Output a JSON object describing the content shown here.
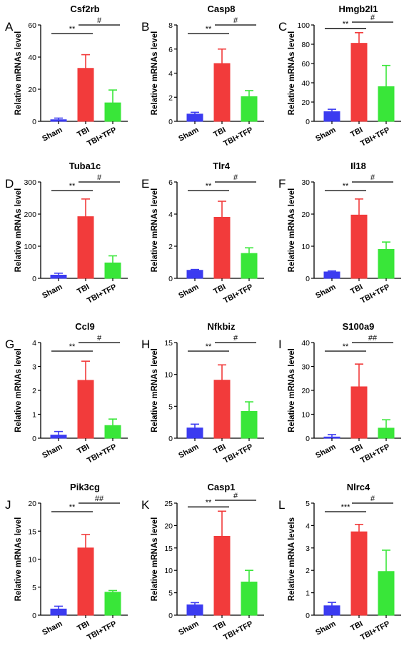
{
  "figure": {
    "colors": {
      "sham": "#3b3bf0",
      "tbi": "#f23b3b",
      "tfp": "#39e639",
      "axis": "#000000"
    },
    "categories": [
      "Sham",
      "TBI",
      "TBI+TFP"
    ]
  },
  "chart_data": [
    {
      "type": "bar",
      "letter": "A",
      "title": "Csf2rb",
      "ylabel": "Relative mRNAs level",
      "categories": [
        "Sham",
        "TBI",
        "TBI+TFP"
      ],
      "values": [
        1,
        33,
        11.5
      ],
      "errors": [
        1,
        8.5,
        8
      ],
      "ylim": [
        0,
        60
      ],
      "yticks": [
        "0",
        "20",
        "40",
        "60"
      ],
      "brackets": [
        {
          "from": 0,
          "to": 1,
          "label": "**"
        },
        {
          "from": 1,
          "to": 2,
          "label": "#"
        }
      ]
    },
    {
      "type": "bar",
      "letter": "B",
      "title": "Casp8",
      "ylabel": "Relative mRNAs level",
      "categories": [
        "Sham",
        "TBI",
        "TBI+TFP"
      ],
      "values": [
        0.6,
        4.8,
        2.05
      ],
      "errors": [
        0.15,
        1.2,
        0.5
      ],
      "ylim": [
        0,
        8
      ],
      "yticks": [
        "0",
        "2",
        "4",
        "6",
        "8"
      ],
      "brackets": [
        {
          "from": 0,
          "to": 1,
          "label": "**"
        },
        {
          "from": 1,
          "to": 2,
          "label": "#"
        }
      ]
    },
    {
      "type": "bar",
      "letter": "C",
      "title": "Hmgb2l1",
      "ylabel": "Relative mRNAs level",
      "categories": [
        "Sham",
        "TBI",
        "TBI+TFP"
      ],
      "values": [
        10,
        81,
        36
      ],
      "errors": [
        2.5,
        11,
        22
      ],
      "ylim": [
        0,
        100
      ],
      "yticks": [
        "0",
        "20",
        "40",
        "60",
        "80",
        "100"
      ],
      "brackets": [
        {
          "from": 0,
          "to": 1,
          "label": "**"
        },
        {
          "from": 1,
          "to": 2,
          "label": "#"
        }
      ]
    },
    {
      "type": "bar",
      "letter": "D",
      "title": "Tuba1c",
      "ylabel": "Relative mRNAs level",
      "categories": [
        "Sham",
        "TBI",
        "TBI+TFP"
      ],
      "values": [
        10,
        192,
        48
      ],
      "errors": [
        6,
        55,
        22
      ],
      "ylim": [
        0,
        300
      ],
      "yticks": [
        "0",
        "100",
        "200",
        "300"
      ],
      "brackets": [
        {
          "from": 0,
          "to": 1,
          "label": "**"
        },
        {
          "from": 1,
          "to": 2,
          "label": "#"
        }
      ]
    },
    {
      "type": "bar",
      "letter": "E",
      "title": "Tlr4",
      "ylabel": "Relative mRNAs level",
      "categories": [
        "Sham",
        "TBI",
        "TBI+TFP"
      ],
      "values": [
        0.5,
        3.8,
        1.55
      ],
      "errors": [
        0.05,
        1.0,
        0.35
      ],
      "ylim": [
        0,
        6
      ],
      "yticks": [
        "0",
        "2",
        "4",
        "6"
      ],
      "brackets": [
        {
          "from": 0,
          "to": 1,
          "label": "**"
        },
        {
          "from": 1,
          "to": 2,
          "label": "#"
        }
      ]
    },
    {
      "type": "bar",
      "letter": "F",
      "title": "Il18",
      "ylabel": "Relative mRNAs level",
      "categories": [
        "Sham",
        "TBI",
        "TBI+TFP"
      ],
      "values": [
        2,
        19.7,
        9
      ],
      "errors": [
        0.3,
        5,
        2.3
      ],
      "ylim": [
        0,
        30
      ],
      "yticks": [
        "0",
        "10",
        "20",
        "30"
      ],
      "brackets": [
        {
          "from": 0,
          "to": 1,
          "label": "**"
        },
        {
          "from": 1,
          "to": 2,
          "label": "#"
        }
      ]
    },
    {
      "type": "bar",
      "letter": "G",
      "title": "Ccl9",
      "ylabel": "Relative mRNAs level",
      "categories": [
        "Sham",
        "TBI",
        "TBI+TFP"
      ],
      "values": [
        0.13,
        2.42,
        0.53
      ],
      "errors": [
        0.15,
        0.8,
        0.27
      ],
      "ylim": [
        0,
        4
      ],
      "yticks": [
        "0",
        "1",
        "2",
        "3",
        "4"
      ],
      "brackets": [
        {
          "from": 0,
          "to": 1,
          "label": "**"
        },
        {
          "from": 1,
          "to": 2,
          "label": "#"
        }
      ]
    },
    {
      "type": "bar",
      "letter": "H",
      "title": "Nfkbiz",
      "ylabel": "Relative mRNAs level",
      "categories": [
        "Sham",
        "TBI",
        "TBI+TFP"
      ],
      "values": [
        1.6,
        9.1,
        4.2
      ],
      "errors": [
        0.6,
        2.4,
        1.5
      ],
      "ylim": [
        0,
        15
      ],
      "yticks": [
        "0",
        "5",
        "10",
        "15"
      ],
      "brackets": [
        {
          "from": 0,
          "to": 1,
          "label": "**"
        },
        {
          "from": 1,
          "to": 2,
          "label": "#"
        }
      ]
    },
    {
      "type": "bar",
      "letter": "I",
      "title": "S100a9",
      "ylabel": "Relative mRNAs level",
      "categories": [
        "Sham",
        "TBI",
        "TBI+TFP"
      ],
      "values": [
        0.5,
        21.5,
        4.2
      ],
      "errors": [
        1,
        9.5,
        3.5
      ],
      "ylim": [
        0,
        40
      ],
      "yticks": [
        "0",
        "10",
        "20",
        "30",
        "40"
      ],
      "brackets": [
        {
          "from": 0,
          "to": 1,
          "label": "**"
        },
        {
          "from": 1,
          "to": 2,
          "label": "##"
        }
      ]
    },
    {
      "type": "bar",
      "letter": "J",
      "title": "Pik3cg",
      "ylabel": "Relative mRNAs level",
      "categories": [
        "Sham",
        "TBI",
        "TBI+TFP"
      ],
      "values": [
        1.1,
        12,
        4.1
      ],
      "errors": [
        0.5,
        2.4,
        0.3
      ],
      "ylim": [
        0,
        20
      ],
      "yticks": [
        "0",
        "5",
        "10",
        "15",
        "20"
      ],
      "brackets": [
        {
          "from": 0,
          "to": 1,
          "label": "**"
        },
        {
          "from": 1,
          "to": 2,
          "label": "##"
        }
      ]
    },
    {
      "type": "bar",
      "letter": "K",
      "title": "Casp1",
      "ylabel": "Relative mRNAs level",
      "categories": [
        "Sham",
        "TBI",
        "TBI+TFP"
      ],
      "values": [
        2.3,
        17.6,
        7.4
      ],
      "errors": [
        0.5,
        5.6,
        2.6
      ],
      "ylim": [
        0,
        25
      ],
      "yticks": [
        "0",
        "5",
        "10",
        "15",
        "20",
        "25"
      ],
      "brackets": [
        {
          "from": 0,
          "to": 1,
          "label": "**"
        },
        {
          "from": 1,
          "to": 2,
          "label": "#"
        }
      ]
    },
    {
      "type": "bar",
      "letter": "L",
      "title": "Nlrc4",
      "ylabel": "Relative mRNA levels",
      "categories": [
        "Sham",
        "TBI",
        "TBI+TFP"
      ],
      "values": [
        0.42,
        3.72,
        1.95
      ],
      "errors": [
        0.15,
        0.33,
        0.95
      ],
      "ylim": [
        0,
        5
      ],
      "yticks": [
        "0",
        "1",
        "2",
        "3",
        "4",
        "5"
      ],
      "brackets": [
        {
          "from": 0,
          "to": 1,
          "label": "***"
        },
        {
          "from": 1,
          "to": 2,
          "label": "#"
        }
      ]
    }
  ]
}
